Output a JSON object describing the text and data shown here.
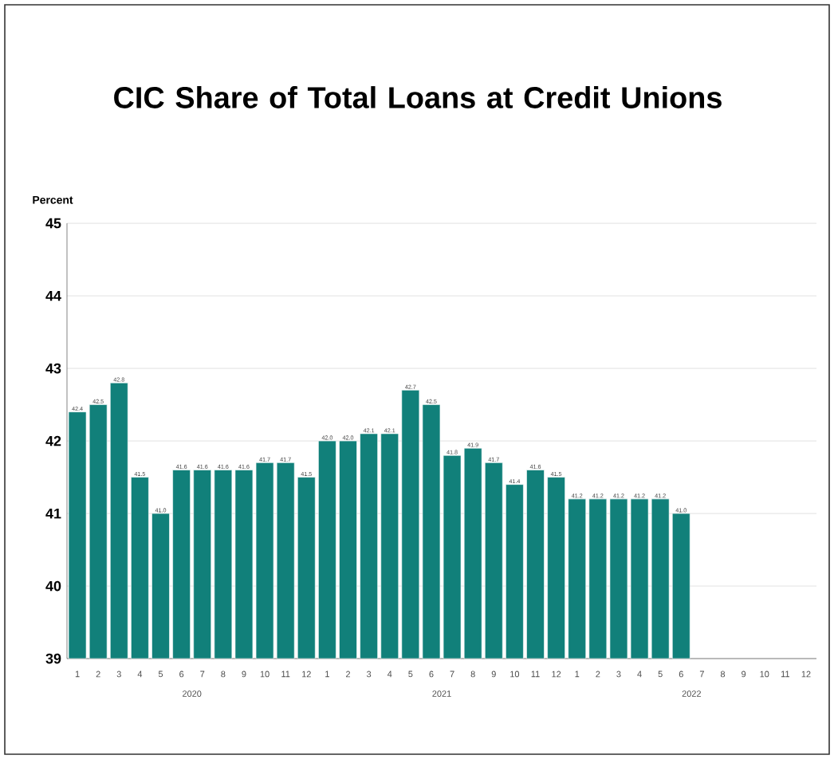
{
  "chart_data": {
    "type": "bar",
    "title": "CIC Share of Total Loans at Credit Unions",
    "ylabel": "Percent",
    "categories": [
      "1",
      "2",
      "3",
      "4",
      "5",
      "6",
      "7",
      "8",
      "9",
      "10",
      "11",
      "12",
      "1",
      "2",
      "3",
      "4",
      "5",
      "6",
      "7",
      "8",
      "9",
      "10",
      "11",
      "12",
      "1",
      "2",
      "3",
      "4",
      "5",
      "6",
      "7",
      "8",
      "9",
      "10",
      "11",
      "12"
    ],
    "values": [
      42.4,
      42.5,
      42.8,
      41.5,
      41.0,
      41.6,
      41.6,
      41.6,
      41.6,
      41.7,
      41.7,
      41.5,
      42.0,
      42.0,
      42.1,
      42.1,
      42.7,
      42.5,
      41.8,
      41.9,
      41.7,
      41.4,
      41.6,
      41.5,
      41.2,
      41.2,
      41.2,
      41.2,
      41.2,
      41.0,
      null,
      null,
      null,
      null,
      null,
      null
    ],
    "color": "#11807a",
    "ylim": [
      39,
      45
    ],
    "yticks": [
      39,
      40,
      41,
      42,
      43,
      44,
      45
    ],
    "grid": "y",
    "value_labels": [
      "42.4",
      "42.5",
      "42.8",
      "41.5",
      "41.0",
      "41.6",
      "41.6",
      "41.6",
      "41.6",
      "41.7",
      "41.7",
      "41.5",
      "42.0",
      "42.0",
      "42.1",
      "42.1",
      "42.7",
      "42.5",
      "41.8",
      "41.9",
      "41.7",
      "41.4",
      "41.6",
      "41.5",
      "41.2",
      "41.2",
      "41.2",
      "41.2",
      "41.2",
      "41.0",
      null,
      null,
      null,
      null,
      null,
      null
    ],
    "annotations": [
      "2020",
      "2021",
      "2022"
    ]
  }
}
